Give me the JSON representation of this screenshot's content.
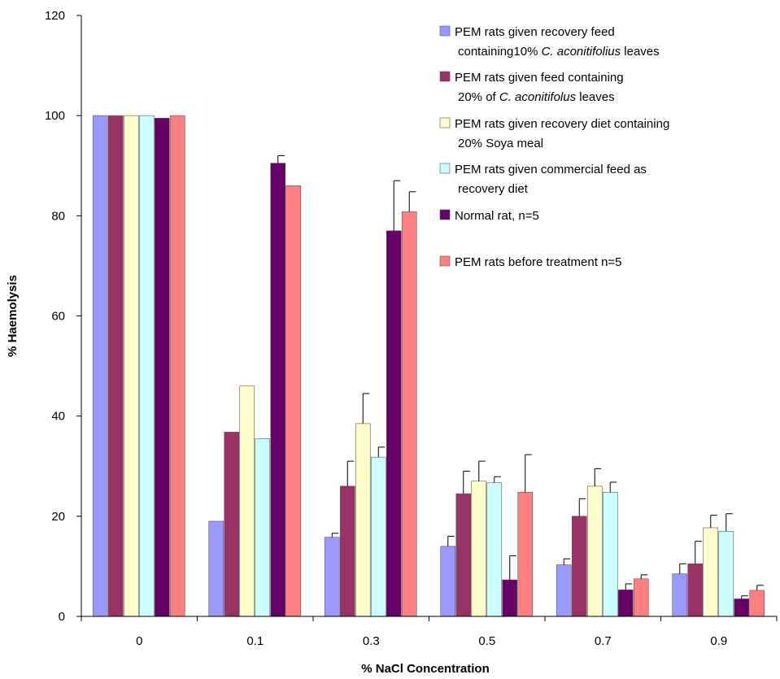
{
  "chart_data": {
    "type": "bar",
    "title": "",
    "xlabel": "% NaCl Concentration",
    "ylabel": "% Haemolysis",
    "ylim": [
      0,
      120
    ],
    "yticks": [
      0,
      20,
      40,
      60,
      80,
      100,
      120
    ],
    "categories": [
      "0",
      "0.1",
      "0.3",
      "0.5",
      "0.7",
      "0.9"
    ],
    "grid": false,
    "legend_position": "top-right",
    "series": [
      {
        "name": "PEM rats given recovery feed containing10% C. aconitifolius leaves",
        "legend_lines": [
          [
            {
              "t": "PEM rats given recovery feed"
            }
          ],
          [
            {
              "t": "containing10% "
            },
            {
              "t": "C. aconitifolius",
              "i": true
            },
            {
              "t": " leaves"
            }
          ]
        ],
        "color": "#9999ff",
        "values": [
          100,
          19,
          15.8,
          14,
          10.3,
          8.5
        ],
        "errors": [
          0,
          0,
          0.8,
          2,
          1.2,
          2
        ]
      },
      {
        "name": "PEM rats given feed containing 20% of C. aconitifolus leaves",
        "legend_lines": [
          [
            {
              "t": "PEM rats given feed containing"
            }
          ],
          [
            {
              "t": "20% of "
            },
            {
              "t": "C. aconitifolus",
              "i": true
            },
            {
              "t": " leaves"
            }
          ]
        ],
        "color": "#993366",
        "values": [
          100,
          36.8,
          26,
          24.5,
          20,
          10.5
        ],
        "errors": [
          0,
          0,
          5,
          4.5,
          3.5,
          4.5
        ]
      },
      {
        "name": "PEM rats given recovery diet containing 20% Soya meal",
        "legend_lines": [
          [
            {
              "t": "PEM rats given recovery diet containing"
            }
          ],
          [
            {
              "t": "20% Soya meal"
            }
          ]
        ],
        "color": "#ffffcc",
        "values": [
          100,
          46,
          38.5,
          27,
          26,
          17.7
        ],
        "errors": [
          0,
          0,
          6,
          4,
          3.5,
          2.5
        ]
      },
      {
        "name": "PEM rats given commercial feed as recovery diet",
        "legend_lines": [
          [
            {
              "t": "PEM rats given commercial feed as"
            }
          ],
          [
            {
              "t": "recovery diet"
            }
          ]
        ],
        "color": "#ccffff",
        "values": [
          100,
          35.5,
          31.8,
          26.7,
          24.8,
          17
        ],
        "errors": [
          0,
          0,
          2,
          1.2,
          2,
          3.5
        ]
      },
      {
        "name": "Normal rat, n=5",
        "legend_lines": [
          [
            {
              "t": "Normal rat, n=5"
            }
          ]
        ],
        "color": "#660066",
        "values": [
          99.5,
          90.5,
          77,
          7.3,
          5.3,
          3.5
        ],
        "errors": [
          0,
          1.5,
          10,
          4.8,
          1.2,
          0.6
        ]
      },
      {
        "name": "PEM rats before treatment n=5",
        "legend_lines": [
          [
            {
              "t": "PEM rats before treatment n=5"
            }
          ]
        ],
        "color": "#ff8080",
        "values": [
          100,
          86,
          80.8,
          24.8,
          7.5,
          5.2
        ],
        "errors": [
          0,
          0,
          4,
          7.5,
          0.8,
          1
        ]
      }
    ]
  }
}
